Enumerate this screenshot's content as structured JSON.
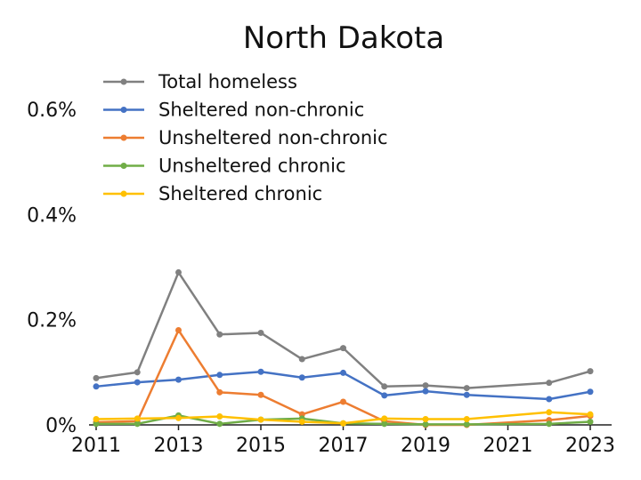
{
  "chart_data": {
    "type": "line",
    "title": "North Dakota",
    "xlabel": "",
    "ylabel": "",
    "ylim": [
      0,
      0.006
    ],
    "xlim": [
      2011,
      2023
    ],
    "y_ticks": [
      0,
      0.002,
      0.004,
      0.006
    ],
    "y_tick_labels": [
      "0%",
      "0.2%",
      "0.4%",
      "0.6%"
    ],
    "x_ticks": [
      2011,
      2013,
      2015,
      2017,
      2019,
      2021,
      2023
    ],
    "x_tick_labels": [
      "2011",
      "2013",
      "2015",
      "2017",
      "2019",
      "2021",
      "2023"
    ],
    "grid": false,
    "legend_position": "top-left",
    "x": [
      2011,
      2012,
      2013,
      2014,
      2015,
      2016,
      2017,
      2018,
      2019,
      2020,
      2022,
      2023
    ],
    "series": [
      {
        "name": "Total homeless",
        "color": "#808080",
        "values": [
          0.00089,
          0.001,
          0.0029,
          0.00172,
          0.00175,
          0.00125,
          0.00146,
          0.00073,
          0.00075,
          0.0007,
          0.0008,
          0.00102
        ]
      },
      {
        "name": "Sheltered non-chronic",
        "color": "#4472c4",
        "values": [
          0.00073,
          0.00081,
          0.00086,
          0.00095,
          0.00101,
          0.0009,
          0.00099,
          0.00056,
          0.00064,
          0.00057,
          0.00049,
          0.00063
        ]
      },
      {
        "name": "Unsheltered non-chronic",
        "color": "#ed7d31",
        "values": [
          5e-05,
          7e-05,
          0.0018,
          0.00062,
          0.00057,
          0.0002,
          0.00044,
          7e-05,
          0.0,
          0.0,
          9e-05,
          0.00017
        ]
      },
      {
        "name": "Unsheltered chronic",
        "color": "#70ad47",
        "values": [
          2e-05,
          2e-05,
          0.00018,
          2e-05,
          0.0001,
          0.00012,
          3e-05,
          2e-05,
          1e-05,
          1e-05,
          2e-05,
          6e-05
        ]
      },
      {
        "name": "Sheltered chronic",
        "color": "#ffc000",
        "values": [
          0.00011,
          0.00012,
          0.00013,
          0.00016,
          0.0001,
          6e-05,
          3e-05,
          0.00012,
          0.00011,
          0.00011,
          0.00024,
          0.0002
        ]
      }
    ]
  }
}
